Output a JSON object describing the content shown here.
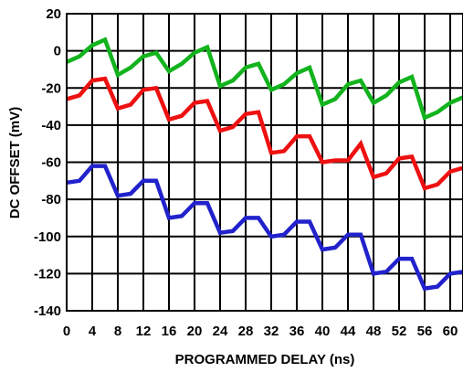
{
  "chart_data": {
    "type": "line",
    "title": "",
    "xlabel": "PROGRAMMED DELAY (ns)",
    "ylabel": "DC OFFSET (mV)",
    "xlim": [
      0,
      62
    ],
    "ylim": [
      -140,
      20
    ],
    "x_ticks": [
      0,
      4,
      8,
      12,
      16,
      20,
      24,
      28,
      32,
      36,
      40,
      44,
      48,
      52,
      56,
      60
    ],
    "y_ticks": [
      20,
      0,
      -20,
      -40,
      -60,
      -80,
      -100,
      -120,
      -140
    ],
    "grid": true,
    "x": [
      0,
      2,
      4,
      6,
      8,
      10,
      12,
      14,
      16,
      18,
      20,
      22,
      24,
      26,
      28,
      30,
      32,
      34,
      36,
      38,
      40,
      42,
      44,
      46,
      48,
      50,
      52,
      54,
      56,
      58,
      60,
      62
    ],
    "series": [
      {
        "color": "#13b31e",
        "values": [
          -6,
          -3,
          3,
          6,
          -13,
          -9,
          -3,
          -1,
          -11,
          -7,
          -1,
          2,
          -19,
          -16,
          -9,
          -7,
          -21,
          -18,
          -12,
          -9,
          -29,
          -26,
          -18,
          -16,
          -28,
          -24,
          -17,
          -14,
          -36,
          -33,
          -28,
          -25
        ]
      },
      {
        "color": "#ee1111",
        "values": [
          -26,
          -24,
          -16,
          -15,
          -31,
          -29,
          -21,
          -20,
          -37,
          -35,
          -28,
          -27,
          -43,
          -41,
          -34,
          -33,
          -55,
          -54,
          -46,
          -46,
          -60,
          -59,
          -59,
          -50,
          -68,
          -66,
          -58,
          -57,
          -74,
          -72,
          -65,
          -63
        ]
      },
      {
        "color": "#2222cc",
        "values": [
          -71,
          -70,
          -62,
          -62,
          -78,
          -77,
          -70,
          -70,
          -90,
          -89,
          -82,
          -82,
          -98,
          -97,
          -90,
          -90,
          -100,
          -99,
          -92,
          -92,
          -107,
          -106,
          -99,
          -99,
          -120,
          -119,
          -112,
          -112,
          -128,
          -127,
          -120,
          -119
        ]
      }
    ]
  }
}
